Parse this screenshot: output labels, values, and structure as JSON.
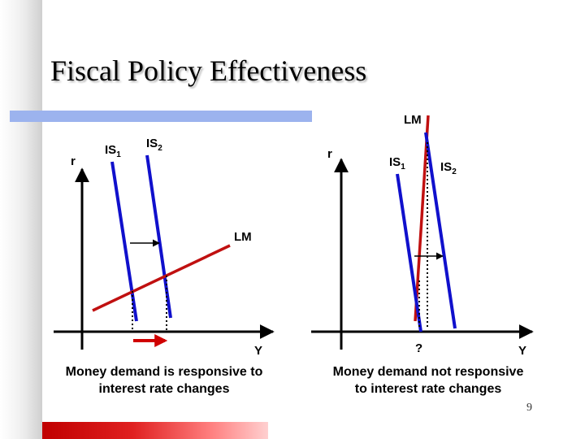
{
  "slide": {
    "title": "Fiscal Policy Effectiveness",
    "page_number": "9"
  },
  "left_panel": {
    "y_axis_label": "r",
    "x_axis_label": "Y",
    "is1_label": "IS",
    "is1_sub": "1",
    "is2_label": "IS",
    "is2_sub": "2",
    "lm_label": "LM",
    "caption": "Money demand is responsive to interest rate changes"
  },
  "right_panel": {
    "y_axis_label": "r",
    "x_axis_label": "Y",
    "is1_label": "IS",
    "is1_sub": "1",
    "is2_label": "IS",
    "is2_sub": "2",
    "lm_label": "LM",
    "question_mark": "?",
    "caption": "Money demand not responsive to interest rate changes"
  },
  "colors": {
    "is_curve": "#1010cc",
    "lm_curve": "#c01010",
    "axis": "#000000",
    "blue_band": "#9cb3ee",
    "red_band": "#c00000"
  }
}
